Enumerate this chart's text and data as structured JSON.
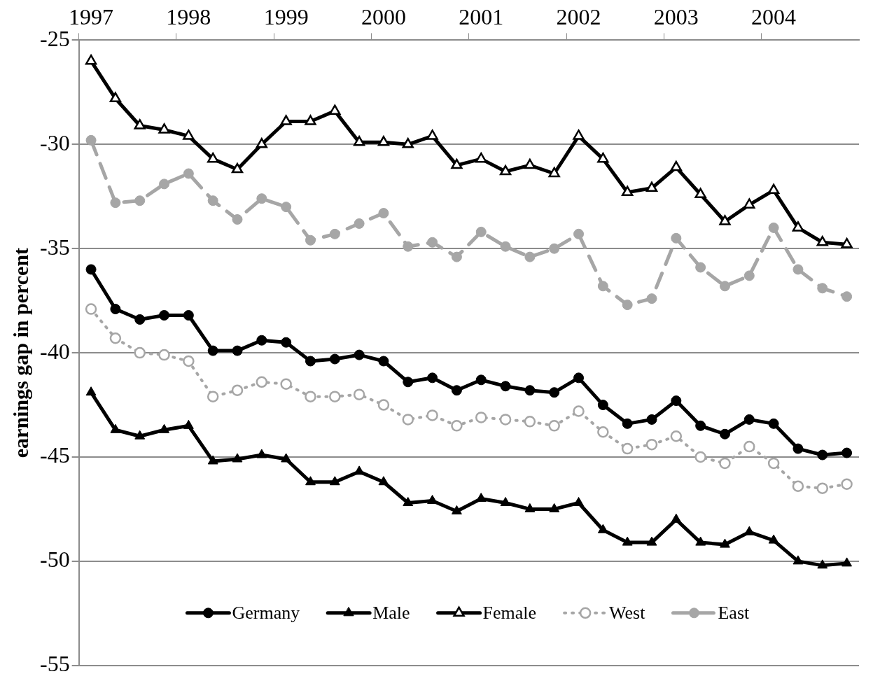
{
  "chart_data": {
    "type": "line",
    "ylabel": "earnings gap in percent",
    "categories": [
      "1997",
      null,
      null,
      null,
      "1998",
      null,
      null,
      null,
      "1999",
      null,
      null,
      null,
      "2000",
      null,
      null,
      null,
      "2001",
      null,
      null,
      null,
      "2002",
      null,
      null,
      null,
      "2003",
      null,
      null,
      null,
      "2004",
      null,
      null,
      null
    ],
    "ylim": [
      -55,
      -25
    ],
    "yticks": [
      -55,
      -50,
      -45,
      -40,
      -35,
      -30,
      -25
    ],
    "grid": "y",
    "legend": "bottom",
    "series": [
      {
        "name": "Germany",
        "color": "#000000",
        "marker": "circle",
        "line_style": "solid",
        "values": [
          -36.0,
          -37.9,
          -38.4,
          -38.2,
          -38.2,
          -39.9,
          -39.9,
          -39.4,
          -39.5,
          -40.4,
          -40.3,
          -40.1,
          -40.4,
          -41.4,
          -41.2,
          -41.8,
          -41.3,
          -41.6,
          -41.8,
          -41.9,
          -41.2,
          -42.5,
          -43.4,
          -43.2,
          -42.3,
          -43.5,
          -43.9,
          -43.2,
          -43.4,
          -44.6,
          -44.9,
          -44.8
        ]
      },
      {
        "name": "Male",
        "color": "#000000",
        "marker": "triangle",
        "line_style": "solid",
        "values": [
          -41.9,
          -43.7,
          -44.0,
          -43.7,
          -43.5,
          -45.2,
          -45.1,
          -44.9,
          -45.1,
          -46.2,
          -46.2,
          -45.7,
          -46.2,
          -47.2,
          -47.1,
          -47.6,
          -47.0,
          -47.2,
          -47.5,
          -47.5,
          -47.2,
          -48.5,
          -49.1,
          -49.1,
          -48.0,
          -49.1,
          -49.2,
          -48.6,
          -49.0,
          -50.0,
          -50.2,
          -50.1
        ]
      },
      {
        "name": "Female",
        "color": "#000000",
        "marker": "triangle-open",
        "line_style": "solid",
        "values": [
          -26.0,
          -27.8,
          -29.1,
          -29.3,
          -29.6,
          -30.7,
          -31.2,
          -30.0,
          -28.9,
          -28.9,
          -28.4,
          -29.9,
          -29.9,
          -30.0,
          -29.6,
          -31.0,
          -30.7,
          -31.3,
          -31.0,
          -31.4,
          -29.6,
          -30.7,
          -32.3,
          -32.1,
          -31.1,
          -32.4,
          -33.7,
          -32.9,
          -32.2,
          -34.0,
          -34.7,
          -34.8
        ]
      },
      {
        "name": "West",
        "color": "#a6a6a6",
        "marker": "circle-open",
        "line_style": "dotted",
        "values": [
          -37.9,
          -39.3,
          -40.0,
          -40.1,
          -40.4,
          -42.1,
          -41.8,
          -41.4,
          -41.5,
          -42.1,
          -42.1,
          -42.0,
          -42.5,
          -43.2,
          -43.0,
          -43.5,
          -43.1,
          -43.2,
          -43.3,
          -43.5,
          -42.8,
          -43.8,
          -44.6,
          -44.4,
          -44.0,
          -45.0,
          -45.3,
          -44.5,
          -45.3,
          -46.4,
          -46.5,
          -46.3
        ]
      },
      {
        "name": "East",
        "color": "#a6a6a6",
        "marker": "circle",
        "line_style": "dashed",
        "values": [
          -29.8,
          -32.8,
          -32.7,
          -31.9,
          -31.4,
          -32.7,
          -33.6,
          -32.6,
          -33.0,
          -34.6,
          -34.3,
          -33.8,
          -33.3,
          -34.9,
          -34.7,
          -35.4,
          -34.2,
          -34.9,
          -35.4,
          -35.0,
          -34.3,
          -36.8,
          -37.7,
          -37.4,
          -34.5,
          -35.9,
          -36.8,
          -36.3,
          -34.0,
          -36.0,
          -36.9,
          -37.3
        ]
      }
    ]
  }
}
